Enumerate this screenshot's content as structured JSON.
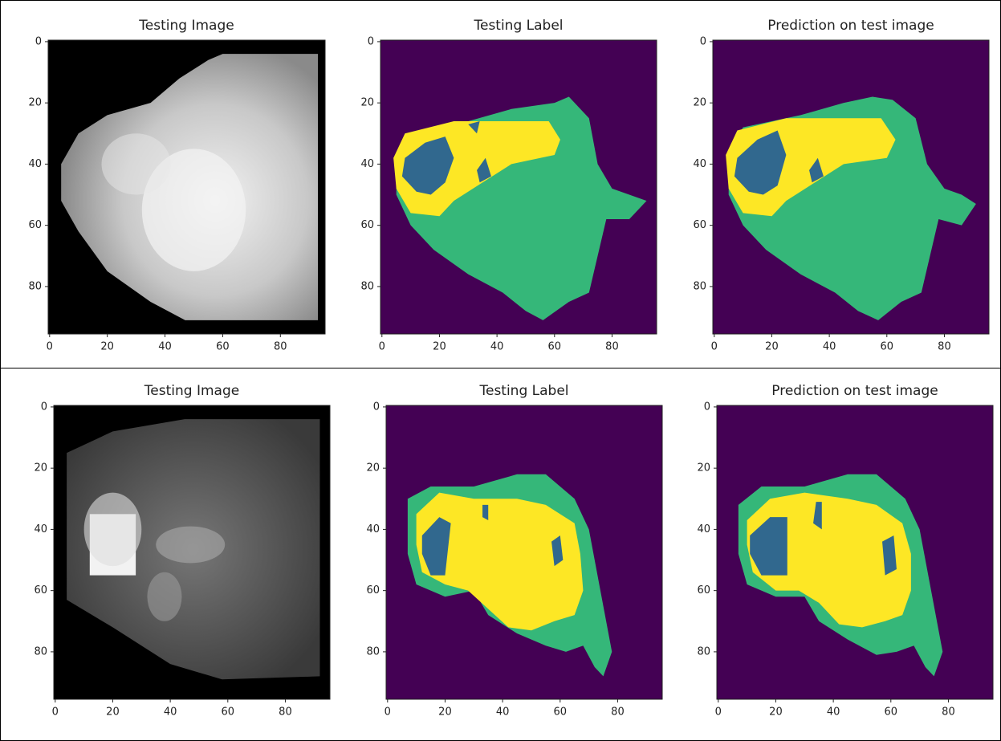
{
  "chart_data": [
    {
      "type": "image",
      "title": "Testing Image",
      "xlim": [
        -0.5,
        95.5
      ],
      "ylim": [
        95.5,
        -0.5
      ],
      "xticks": [
        0,
        20,
        40,
        60,
        80
      ],
      "yticks": [
        0,
        20,
        40,
        60,
        80
      ]
    },
    {
      "type": "image",
      "title": "Testing Label",
      "xlim": [
        -0.5,
        95.5
      ],
      "ylim": [
        95.5,
        -0.5
      ],
      "xticks": [
        0,
        20,
        40,
        60,
        80
      ],
      "yticks": [
        0,
        20,
        40,
        60,
        80
      ]
    },
    {
      "type": "image",
      "title": "Prediction on test image",
      "xlim": [
        -0.5,
        95.5
      ],
      "ylim": [
        95.5,
        -0.5
      ],
      "xticks": [
        0,
        20,
        40,
        60,
        80
      ],
      "yticks": [
        0,
        20,
        40,
        60,
        80
      ]
    },
    {
      "type": "image",
      "title": "Testing Image",
      "xlim": [
        -0.5,
        95.5
      ],
      "ylim": [
        95.5,
        -0.5
      ],
      "xticks": [
        0,
        20,
        40,
        60,
        80
      ],
      "yticks": [
        0,
        20,
        40,
        60,
        80
      ]
    },
    {
      "type": "image",
      "title": "Testing Label",
      "xlim": [
        -0.5,
        95.5
      ],
      "ylim": [
        95.5,
        -0.5
      ],
      "xticks": [
        0,
        20,
        40,
        60,
        80
      ],
      "yticks": [
        0,
        20,
        40,
        60,
        80
      ]
    },
    {
      "type": "image",
      "title": "Prediction on test image",
      "xlim": [
        -0.5,
        95.5
      ],
      "ylim": [
        95.5,
        -0.5
      ],
      "xticks": [
        0,
        20,
        40,
        60,
        80
      ],
      "yticks": [
        0,
        20,
        40,
        60,
        80
      ]
    }
  ]
}
